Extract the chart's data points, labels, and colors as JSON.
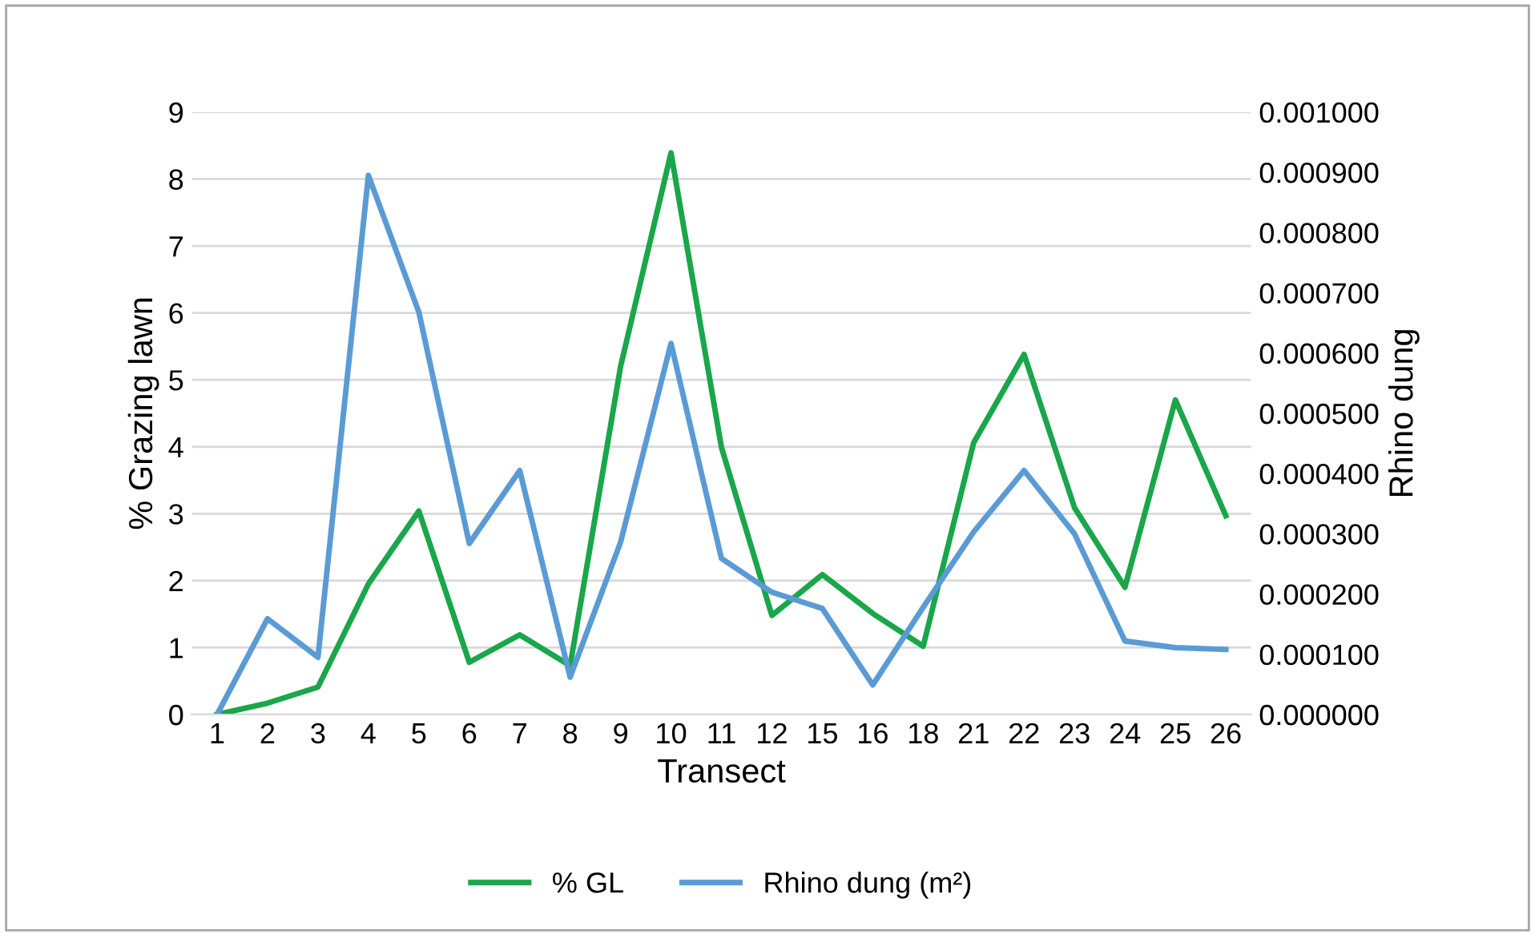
{
  "chart_data": {
    "type": "line",
    "xlabel": "Transect",
    "ylabel": "% Grazing lawn",
    "y2label": "Rhino dung",
    "categories": [
      "1",
      "2",
      "3",
      "4",
      "5",
      "6",
      "7",
      "8",
      "9",
      "10",
      "11",
      "12",
      "15",
      "16",
      "18",
      "21",
      "22",
      "23",
      "24",
      "25",
      "26"
    ],
    "series": [
      {
        "name": "% GL",
        "color": "#1aa64a",
        "values": [
          0,
          0.17,
          0.41,
          1.95,
          3.04,
          0.78,
          1.19,
          0.73,
          5.2,
          8.39,
          3.99,
          1.48,
          2.09,
          1.51,
          1.02,
          4.06,
          5.38,
          3.09,
          1.9,
          4.7,
          2.97
        ]
      },
      {
        "name": "Rhino dung (m²)",
        "color": "#5b9bd5",
        "axis": "y2",
        "values": [
          0,
          0.000159,
          9.5e-05,
          0.000895,
          0.000668,
          0.000284,
          0.000405,
          6.2e-05,
          0.000286,
          0.000616,
          0.000259,
          0.000203,
          0.000176,
          4.9e-05,
          0.000178,
          0.000303,
          0.000405,
          0.0003,
          0.000122,
          0.000111,
          0.000108
        ]
      }
    ],
    "ylim": [
      0,
      9
    ],
    "yticks": [
      0,
      1,
      2,
      3,
      4,
      5,
      6,
      7,
      8,
      9
    ],
    "y2lim": [
      0,
      0.001
    ],
    "y2ticks": [
      {
        "value": 0,
        "label": "0.000000"
      },
      {
        "value": 0.0001,
        "label": "0.000100"
      },
      {
        "value": 0.0002,
        "label": "0.000200"
      },
      {
        "value": 0.0003,
        "label": "0.000300"
      },
      {
        "value": 0.0004,
        "label": "0.000400"
      },
      {
        "value": 0.0005,
        "label": "0.000500"
      },
      {
        "value": 0.0006,
        "label": "0.000600"
      },
      {
        "value": 0.0007,
        "label": "0.000700"
      },
      {
        "value": 0.0008,
        "label": "0.000800"
      },
      {
        "value": 0.0009,
        "label": "0.000900"
      },
      {
        "value": 0.001,
        "label": "0.001000"
      }
    ],
    "grid": "y",
    "legend": "bottom",
    "line_style": "solid",
    "marker": "none"
  }
}
